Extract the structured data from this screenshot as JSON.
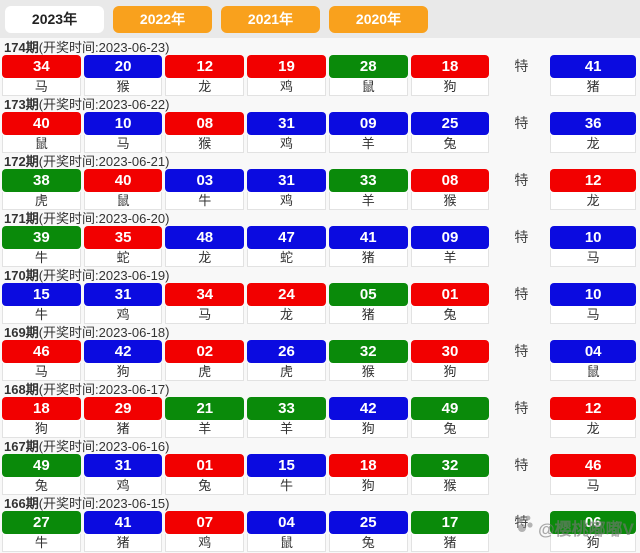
{
  "tabs": [
    {
      "label": "2023年",
      "active": true
    },
    {
      "label": "2022年",
      "active": false
    },
    {
      "label": "2021年",
      "active": false
    },
    {
      "label": "2020年",
      "active": false
    }
  ],
  "colors": {
    "red": "#f20000",
    "blue": "#0b0be0",
    "green": "#0a8a0a",
    "tab_orange": "#f9a11d"
  },
  "special_label": "特",
  "draws": [
    {
      "period": "174期",
      "time": "(开奖时间:2023-06-23)",
      "balls": [
        {
          "num": "34",
          "color": "red",
          "zodiac": "马"
        },
        {
          "num": "20",
          "color": "blue",
          "zodiac": "猴"
        },
        {
          "num": "12",
          "color": "red",
          "zodiac": "龙"
        },
        {
          "num": "19",
          "color": "red",
          "zodiac": "鸡"
        },
        {
          "num": "28",
          "color": "green",
          "zodiac": "鼠"
        },
        {
          "num": "18",
          "color": "red",
          "zodiac": "狗"
        }
      ],
      "special": {
        "num": "41",
        "color": "blue",
        "zodiac": "猪"
      }
    },
    {
      "period": "173期",
      "time": "(开奖时间:2023-06-22)",
      "balls": [
        {
          "num": "40",
          "color": "red",
          "zodiac": "鼠"
        },
        {
          "num": "10",
          "color": "blue",
          "zodiac": "马"
        },
        {
          "num": "08",
          "color": "red",
          "zodiac": "猴"
        },
        {
          "num": "31",
          "color": "blue",
          "zodiac": "鸡"
        },
        {
          "num": "09",
          "color": "blue",
          "zodiac": "羊"
        },
        {
          "num": "25",
          "color": "blue",
          "zodiac": "兔"
        }
      ],
      "special": {
        "num": "36",
        "color": "blue",
        "zodiac": "龙"
      }
    },
    {
      "period": "172期",
      "time": "(开奖时间:2023-06-21)",
      "balls": [
        {
          "num": "38",
          "color": "green",
          "zodiac": "虎"
        },
        {
          "num": "40",
          "color": "red",
          "zodiac": "鼠"
        },
        {
          "num": "03",
          "color": "blue",
          "zodiac": "牛"
        },
        {
          "num": "31",
          "color": "blue",
          "zodiac": "鸡"
        },
        {
          "num": "33",
          "color": "green",
          "zodiac": "羊"
        },
        {
          "num": "08",
          "color": "red",
          "zodiac": "猴"
        }
      ],
      "special": {
        "num": "12",
        "color": "red",
        "zodiac": "龙"
      }
    },
    {
      "period": "171期",
      "time": "(开奖时间:2023-06-20)",
      "balls": [
        {
          "num": "39",
          "color": "green",
          "zodiac": "牛"
        },
        {
          "num": "35",
          "color": "red",
          "zodiac": "蛇"
        },
        {
          "num": "48",
          "color": "blue",
          "zodiac": "龙"
        },
        {
          "num": "47",
          "color": "blue",
          "zodiac": "蛇"
        },
        {
          "num": "41",
          "color": "blue",
          "zodiac": "猪"
        },
        {
          "num": "09",
          "color": "blue",
          "zodiac": "羊"
        }
      ],
      "special": {
        "num": "10",
        "color": "blue",
        "zodiac": "马"
      }
    },
    {
      "period": "170期",
      "time": "(开奖时间:2023-06-19)",
      "balls": [
        {
          "num": "15",
          "color": "blue",
          "zodiac": "牛"
        },
        {
          "num": "31",
          "color": "blue",
          "zodiac": "鸡"
        },
        {
          "num": "34",
          "color": "red",
          "zodiac": "马"
        },
        {
          "num": "24",
          "color": "red",
          "zodiac": "龙"
        },
        {
          "num": "05",
          "color": "green",
          "zodiac": "猪"
        },
        {
          "num": "01",
          "color": "red",
          "zodiac": "兔"
        }
      ],
      "special": {
        "num": "10",
        "color": "blue",
        "zodiac": "马"
      }
    },
    {
      "period": "169期",
      "time": "(开奖时间:2023-06-18)",
      "balls": [
        {
          "num": "46",
          "color": "red",
          "zodiac": "马"
        },
        {
          "num": "42",
          "color": "blue",
          "zodiac": "狗"
        },
        {
          "num": "02",
          "color": "red",
          "zodiac": "虎"
        },
        {
          "num": "26",
          "color": "blue",
          "zodiac": "虎"
        },
        {
          "num": "32",
          "color": "green",
          "zodiac": "猴"
        },
        {
          "num": "30",
          "color": "red",
          "zodiac": "狗"
        }
      ],
      "special": {
        "num": "04",
        "color": "blue",
        "zodiac": "鼠"
      }
    },
    {
      "period": "168期",
      "time": "(开奖时间:2023-06-17)",
      "balls": [
        {
          "num": "18",
          "color": "red",
          "zodiac": "狗"
        },
        {
          "num": "29",
          "color": "red",
          "zodiac": "猪"
        },
        {
          "num": "21",
          "color": "green",
          "zodiac": "羊"
        },
        {
          "num": "33",
          "color": "green",
          "zodiac": "羊"
        },
        {
          "num": "42",
          "color": "blue",
          "zodiac": "狗"
        },
        {
          "num": "49",
          "color": "green",
          "zodiac": "兔"
        }
      ],
      "special": {
        "num": "12",
        "color": "red",
        "zodiac": "龙"
      }
    },
    {
      "period": "167期",
      "time": "(开奖时间:2023-06-16)",
      "balls": [
        {
          "num": "49",
          "color": "green",
          "zodiac": "兔"
        },
        {
          "num": "31",
          "color": "blue",
          "zodiac": "鸡"
        },
        {
          "num": "01",
          "color": "red",
          "zodiac": "兔"
        },
        {
          "num": "15",
          "color": "blue",
          "zodiac": "牛"
        },
        {
          "num": "18",
          "color": "red",
          "zodiac": "狗"
        },
        {
          "num": "32",
          "color": "green",
          "zodiac": "猴"
        }
      ],
      "special": {
        "num": "46",
        "color": "red",
        "zodiac": "马"
      }
    },
    {
      "period": "166期",
      "time": "(开奖时间:2023-06-15)",
      "balls": [
        {
          "num": "27",
          "color": "green",
          "zodiac": "牛"
        },
        {
          "num": "41",
          "color": "blue",
          "zodiac": "猪"
        },
        {
          "num": "07",
          "color": "red",
          "zodiac": "鸡"
        },
        {
          "num": "04",
          "color": "blue",
          "zodiac": "鼠"
        },
        {
          "num": "25",
          "color": "blue",
          "zodiac": "兔"
        },
        {
          "num": "17",
          "color": "green",
          "zodiac": "猪"
        }
      ],
      "special": {
        "num": "06",
        "color": "green",
        "zodiac": "狗"
      }
    }
  ],
  "watermark": {
    "text": "@樱桃嘟嘟V",
    "icon": "paw-dots-icon"
  }
}
